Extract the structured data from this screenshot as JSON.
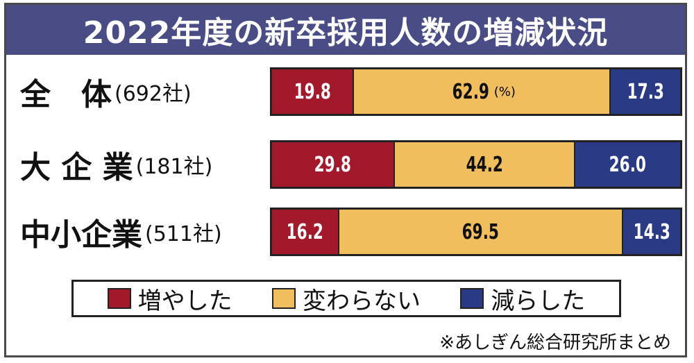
{
  "title": "2022年度の新卒採用人数の増減状況",
  "unit_note": "(%)",
  "colors": {
    "increased": "#a3192c",
    "unchanged": "#f0be5c",
    "decreased": "#2a3a85",
    "title_bg": "#4a4d85"
  },
  "legend": [
    {
      "key": "increased",
      "label": "増やした"
    },
    {
      "key": "unchanged",
      "label": "変わらない"
    },
    {
      "key": "decreased",
      "label": "減らした"
    }
  ],
  "source": "※あしぎん総合研究所まとめ",
  "chart_data": {
    "type": "bar",
    "stacked": true,
    "orientation": "horizontal",
    "title": "2022年度の新卒採用人数の増減状況",
    "categories": [
      "全体",
      "大企業",
      "中小企業"
    ],
    "category_labels": [
      {
        "name": "全　体",
        "count": "(692社)"
      },
      {
        "name": "大 企 業",
        "count": "(181社)"
      },
      {
        "name": "中小企業",
        "count": "(511社)"
      }
    ],
    "series": [
      {
        "name": "増やした",
        "values": [
          19.8,
          29.8,
          16.2
        ]
      },
      {
        "name": "変わらない",
        "values": [
          62.9,
          44.2,
          69.5
        ]
      },
      {
        "name": "減らした",
        "values": [
          17.3,
          26.0,
          14.3
        ]
      }
    ],
    "value_labels": [
      [
        "19.8",
        "62.9",
        "17.3"
      ],
      [
        "29.8",
        "44.2",
        "26.0"
      ],
      [
        "16.2",
        "69.5",
        "14.3"
      ]
    ],
    "xlim": [
      0,
      100
    ],
    "legend_position": "bottom"
  }
}
